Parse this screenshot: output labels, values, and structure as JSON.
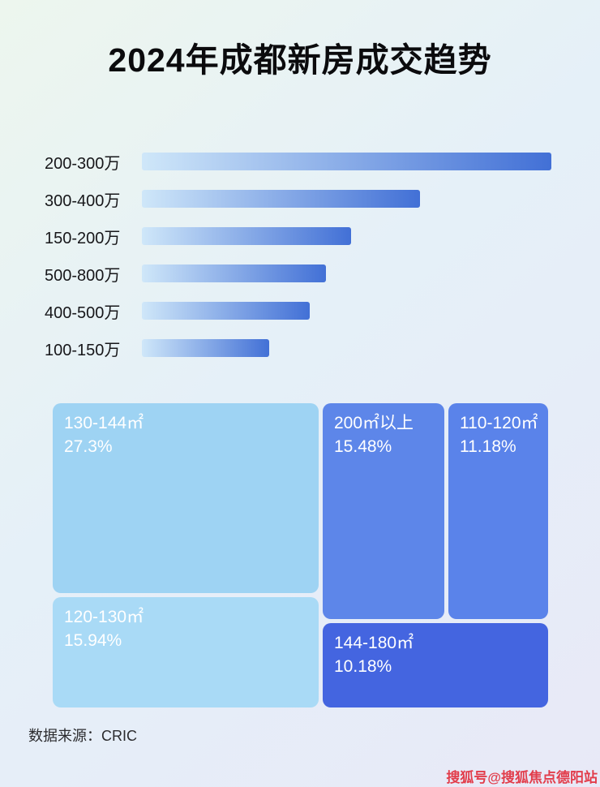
{
  "page": {
    "title": "2024年成都新房成交趋势",
    "source": "数据来源：CRIC",
    "watermark": "搜狐号@搜狐焦点德阳站"
  },
  "chart_data": [
    {
      "type": "bar",
      "orientation": "horizontal",
      "categories": [
        "200-300万",
        "300-400万",
        "150-200万",
        "500-800万",
        "400-500万",
        "100-150万"
      ],
      "values": [
        100,
        68,
        51,
        45,
        41,
        31
      ],
      "xlim": [
        0,
        100
      ],
      "value_unit": "relative-length-percent-of-longest-bar",
      "bar_gradient": [
        "#cfe7f9",
        "#4270d6"
      ],
      "grid": "off",
      "legend": "none"
    },
    {
      "type": "treemap",
      "items": [
        {
          "label": "130-144㎡",
          "value": "27.3%",
          "percent": 27.3,
          "color": "#9ed3f3"
        },
        {
          "label": "120-130㎡",
          "value": "15.94%",
          "percent": 15.94,
          "color": "#a9daf6"
        },
        {
          "label": "200㎡以上",
          "value": "15.48%",
          "percent": 15.48,
          "color": "#5d86e9"
        },
        {
          "label": "110-120㎡",
          "value": "11.18%",
          "percent": 11.18,
          "color": "#5a83ea"
        },
        {
          "label": "144-180㎡",
          "value": "10.18%",
          "percent": 10.18,
          "color": "#4465e0"
        }
      ]
    }
  ]
}
